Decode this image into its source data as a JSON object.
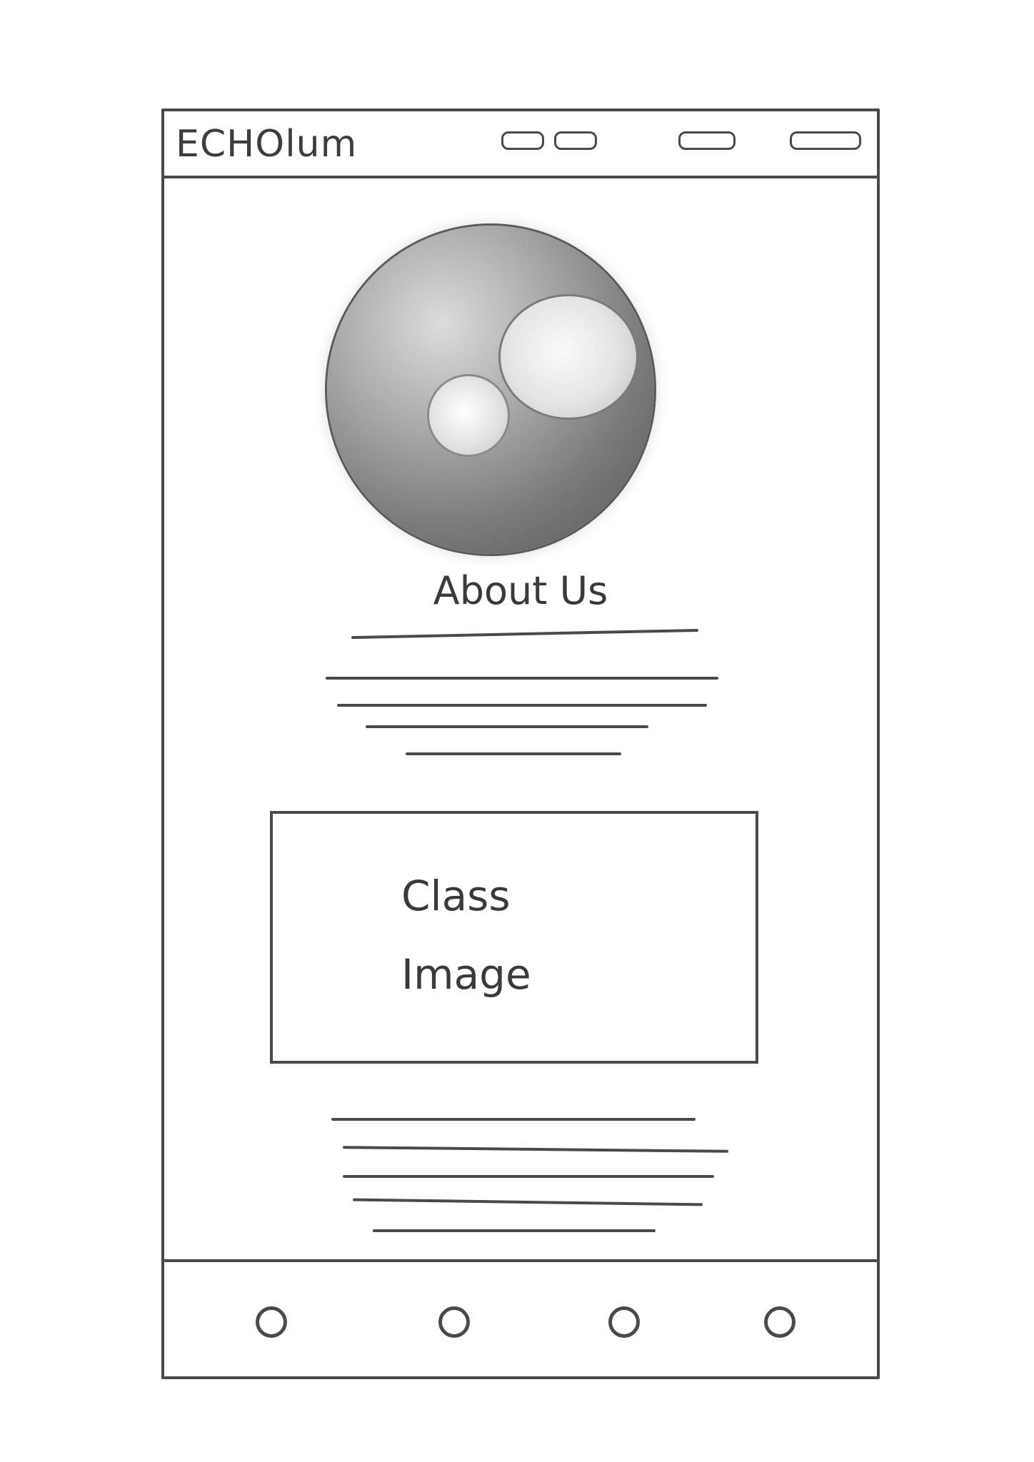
{
  "header": {
    "logo_text": "ECHOlum",
    "nav_items": [
      "nav-1",
      "nav-2",
      "nav-3",
      "nav-4"
    ]
  },
  "hero": {
    "image_label": ""
  },
  "about": {
    "title": "About Us"
  },
  "class_image": {
    "label": "Class\nImage"
  },
  "bottom_nav": {
    "icons": [
      "circle-icon",
      "circle-icon",
      "circle-icon",
      "circle-icon"
    ]
  }
}
